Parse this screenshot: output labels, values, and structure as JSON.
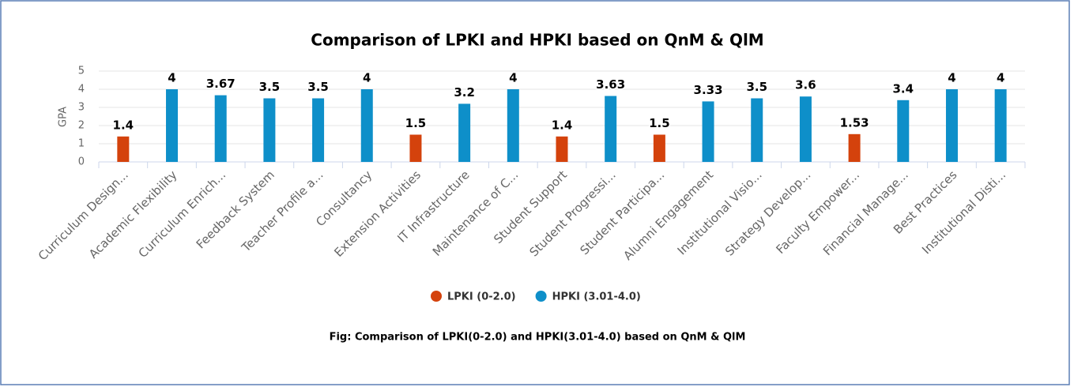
{
  "chart_data": {
    "type": "bar",
    "title": "Comparison of LPKI and HPKI based on QnM & QlM",
    "ylabel": "GPA",
    "caption": "Fig: Comparison of LPKI(0-2.0) and HPKI(3.01-4.0) based on QnM & QlM",
    "categories": [
      "Curriculum Design...",
      "Academic Flexibility",
      "Curriculum Enrich...",
      "Feedback System",
      "Teacher Profile a...",
      "Consultancy",
      "Extension Activities",
      "IT Infrastructure",
      "Maintenance of C...",
      "Student Support",
      "Student Progressi...",
      "Student Participa...",
      "Alumni Engagement",
      "Institutional Visio...",
      "Strategy Develop...",
      "Faculty Empower...",
      "Financial Manage...",
      "Best Practices",
      "Institutional Disti..."
    ],
    "series": [
      {
        "name": "LPKI (0-2.0)",
        "color": "#d4420c",
        "values": [
          1.4,
          null,
          null,
          null,
          null,
          null,
          1.5,
          null,
          null,
          1.4,
          null,
          1.5,
          null,
          null,
          null,
          1.53,
          null,
          null,
          null
        ]
      },
      {
        "name": "HPKI (3.01-4.0)",
        "color": "#0e8fc9",
        "values": [
          null,
          4,
          3.67,
          3.5,
          3.5,
          4,
          null,
          3.2,
          4,
          null,
          3.63,
          null,
          3.33,
          3.5,
          3.6,
          null,
          3.4,
          4,
          4
        ]
      }
    ],
    "ylim": [
      0,
      5
    ],
    "yticks": [
      0,
      1,
      2,
      3,
      4,
      5
    ],
    "grid": true,
    "legend": "bottom"
  }
}
